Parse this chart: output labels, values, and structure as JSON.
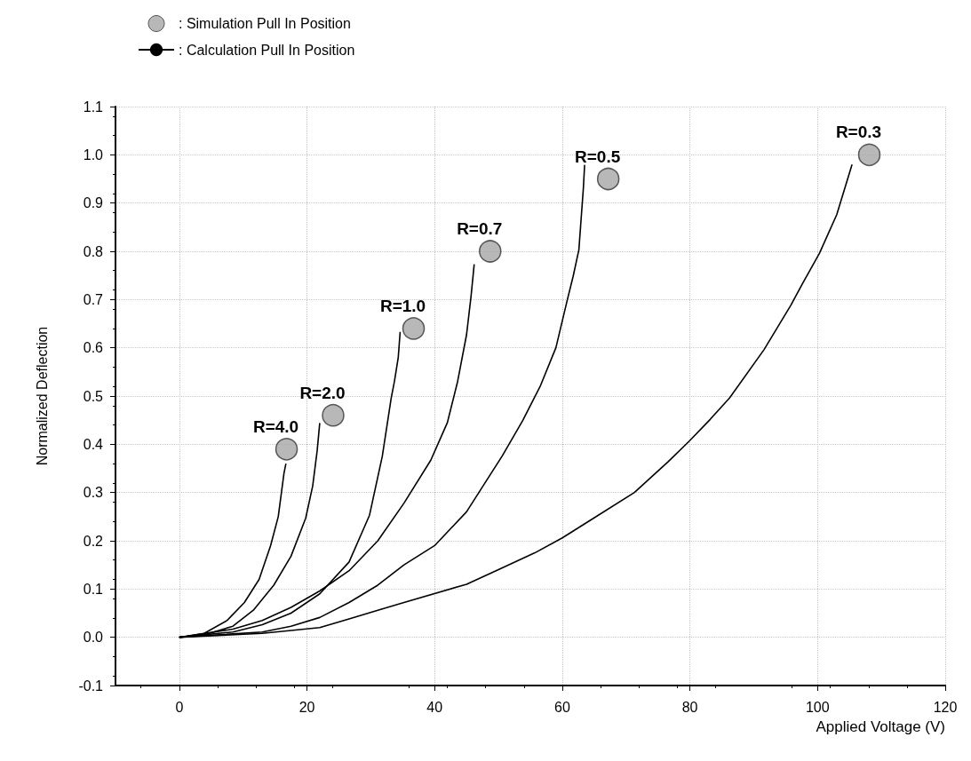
{
  "chart_data": {
    "type": "line",
    "xlabel": "Applied Voltage (V)",
    "ylabel": "Normalized Deflection",
    "xlim": [
      -10,
      120
    ],
    "xticks": [
      0,
      20,
      40,
      60,
      80,
      100,
      120
    ],
    "ylim": [
      -0.1,
      1.1
    ],
    "yticks": [
      -0.1,
      {
        "value": 0,
        "label": "0.0"
      },
      0.1,
      0.2,
      0.3,
      0.4,
      0.5,
      0.6,
      0.7,
      0.8,
      0.9,
      {
        "value": 1,
        "label": "1.0"
      },
      1.1
    ],
    "grid": true,
    "legend": "top left",
    "line_style": "solid",
    "series": [
      {
        "name": ": Simulation Pull In Position",
        "type": "scatter",
        "marker": "circle",
        "color": "#a6a6a6",
        "x": [
          16.8,
          24.1,
          36.7,
          48.7,
          67.2,
          108.1
        ],
        "values": [
          0.39,
          0.46,
          0.64,
          0.8,
          0.95,
          1.0
        ]
      },
      {
        "name": ": Calculation Pull In Position",
        "color": "#000000",
        "x": [
          0,
          3.9,
          7.5,
          10.2,
          12.5,
          14.3,
          15.5,
          16.4,
          16.7
        ],
        "values": [
          0,
          0.008,
          0.035,
          0.072,
          0.12,
          0.19,
          0.25,
          0.34,
          0.36
        ]
      },
      {
        "color": "#000000",
        "x": [
          0,
          3.9,
          8.4,
          11.6,
          14.8,
          17.5,
          19.8,
          20.9,
          21.6,
          22.0
        ],
        "values": [
          0,
          0.005,
          0.023,
          0.056,
          0.108,
          0.168,
          0.247,
          0.314,
          0.387,
          0.444
        ]
      },
      {
        "color": "#000000",
        "x": [
          0,
          8.4,
          13.0,
          17.5,
          22.0,
          26.6,
          29.8,
          31.8,
          33.2,
          33.7,
          34.3,
          34.6
        ],
        "values": [
          0,
          0.011,
          0.026,
          0.05,
          0.09,
          0.156,
          0.253,
          0.375,
          0.496,
          0.53,
          0.58,
          0.633
        ]
      },
      {
        "color": "#000000",
        "x": [
          0,
          8.4,
          13.0,
          17.5,
          22.0,
          26.6,
          31.1,
          35.2,
          39.4,
          42.0,
          43.6,
          45.0,
          45.7,
          46.2
        ],
        "values": [
          0,
          0.017,
          0.035,
          0.062,
          0.096,
          0.138,
          0.2,
          0.278,
          0.367,
          0.445,
          0.53,
          0.627,
          0.706,
          0.773
        ]
      },
      {
        "color": "#000000",
        "x": [
          0,
          13.0,
          17.5,
          22.0,
          26.6,
          31.1,
          35.2,
          40,
          45,
          50.6,
          53.8,
          56.6,
          59.0,
          60.8,
          61.7,
          62.6,
          63.3,
          63.5
        ],
        "values": [
          0,
          0.011,
          0.023,
          0.041,
          0.072,
          0.108,
          0.15,
          0.19,
          0.26,
          0.376,
          0.449,
          0.522,
          0.6,
          0.7,
          0.748,
          0.803,
          0.93,
          0.979
        ]
      },
      {
        "color": "#000000",
        "x": [
          0,
          13.0,
          17.5,
          22.0,
          26.6,
          31.1,
          35.2,
          45,
          50,
          55.7,
          60,
          64.7,
          71.3,
          76.6,
          80,
          83.2,
          86.2,
          91.6,
          95.8,
          97.6,
          100.3,
          103.0,
          105.4
        ],
        "values": [
          0,
          0.008,
          0.014,
          0.02,
          0.038,
          0.056,
          0.072,
          0.11,
          0.14,
          0.175,
          0.206,
          0.245,
          0.3,
          0.364,
          0.408,
          0.452,
          0.496,
          0.596,
          0.688,
          0.732,
          0.796,
          0.876,
          0.98
        ]
      }
    ],
    "annotations": [
      {
        "text": "R=4.0",
        "x": 16.8,
        "y": 0.39
      },
      {
        "text": "R=2.0",
        "x": 24.1,
        "y": 0.46
      },
      {
        "text": "R=1.0",
        "x": 36.7,
        "y": 0.64
      },
      {
        "text": "R=0.7",
        "x": 48.7,
        "y": 0.8
      },
      {
        "text": "R=0.5",
        "x": 67.2,
        "y": 0.95
      },
      {
        "text": "R=0.3",
        "x": 108.1,
        "y": 1.0
      }
    ]
  }
}
